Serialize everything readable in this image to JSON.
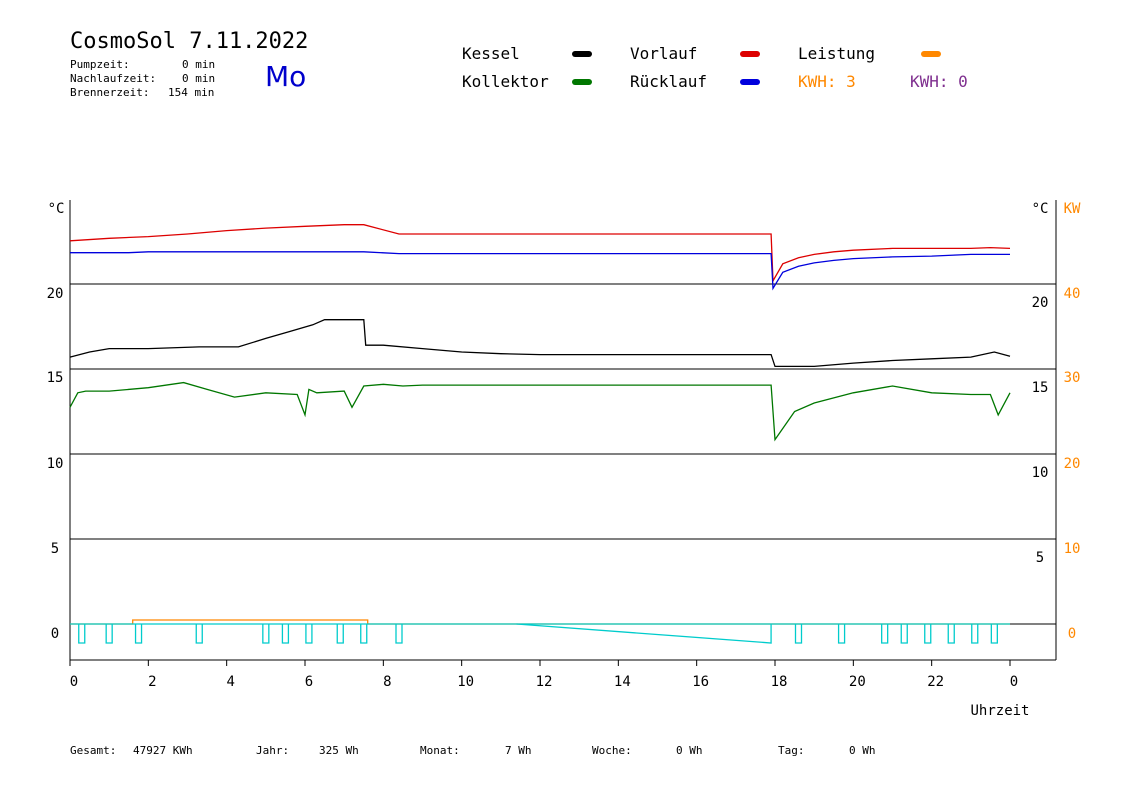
{
  "header": {
    "title": "CosmoSol 7.11.2022",
    "day": "Mo",
    "pumpzeit_label": "Pumpzeit:",
    "pumpzeit_value": "0 min",
    "nachlaufzeit_label": "Nachlaufzeit:",
    "nachlaufzeit_value": "0 min",
    "brennerzeit_label": "Brennerzeit:",
    "brennerzeit_value": "154 min"
  },
  "legend": {
    "kessel": "Kessel",
    "kollektor": "Kollektor",
    "vorlauf": "Vorlauf",
    "ruecklauf": "Rücklauf",
    "leistung": "Leistung",
    "kwh1": "KWH: 3",
    "kwh2": "KWH: 0"
  },
  "colors": {
    "kessel": "#000000",
    "kollektor": "#007700",
    "vorlauf": "#dd0000",
    "ruecklauf": "#0000dd",
    "leistung": "#ff8800",
    "kwh2": "#7f2f8f",
    "pump": "#00cccc"
  },
  "footer": {
    "gesamt_label": "Gesamt:",
    "gesamt_value": "47927 KWh",
    "jahr_label": "Jahr:",
    "jahr_value": "325 Wh",
    "monat_label": "Monat:",
    "monat_value": "7 Wh",
    "woche_label": "Woche:",
    "woche_value": "0 Wh",
    "tag_label": "Tag:",
    "tag_value": "0 Wh"
  },
  "chart_data": {
    "type": "line",
    "xlabel": "Uhrzeit",
    "x_ticks": [
      "0",
      "2",
      "4",
      "6",
      "8",
      "10",
      "12",
      "14",
      "16",
      "18",
      "20",
      "22",
      "0"
    ],
    "xlim": [
      0,
      24
    ],
    "left_axis": {
      "unit": "°C",
      "ticks": [
        "20",
        "15",
        "10",
        "5",
        "0"
      ]
    },
    "right_axis_temp": {
      "unit": "°C",
      "ticks": [
        "20",
        "15",
        "10",
        "5"
      ]
    },
    "right_axis_power": {
      "unit": "KW",
      "ticks": [
        "40",
        "30",
        "20",
        "10",
        "0"
      ]
    },
    "series": [
      {
        "name": "Vorlauf",
        "color": "#dd0000",
        "band": 0,
        "x": [
          0,
          1,
          2,
          3,
          4,
          5,
          6,
          7,
          7.5,
          8.4,
          10,
          12,
          14,
          16,
          17.9,
          17.95,
          18.2,
          18.6,
          19,
          19.5,
          20,
          21,
          22,
          23,
          23.5,
          24
        ],
        "y": [
          0.52,
          0.55,
          0.57,
          0.6,
          0.64,
          0.67,
          0.69,
          0.71,
          0.71,
          0.6,
          0.6,
          0.6,
          0.6,
          0.6,
          0.6,
          0.05,
          0.25,
          0.32,
          0.36,
          0.39,
          0.41,
          0.43,
          0.43,
          0.43,
          0.44,
          0.43
        ]
      },
      {
        "name": "Rücklauf",
        "color": "#0000dd",
        "band": 0,
        "x": [
          0,
          1.5,
          2,
          4,
          6,
          7.5,
          8.4,
          10,
          12,
          14,
          16,
          17.9,
          17.95,
          18.2,
          18.6,
          19,
          19.5,
          20,
          21,
          22,
          23,
          24
        ],
        "y": [
          0.38,
          0.38,
          0.39,
          0.39,
          0.39,
          0.39,
          0.37,
          0.37,
          0.37,
          0.37,
          0.37,
          0.37,
          -0.04,
          0.15,
          0.22,
          0.26,
          0.29,
          0.31,
          0.33,
          0.34,
          0.36,
          0.36
        ]
      },
      {
        "name": "Kessel",
        "color": "#000000",
        "band": 1,
        "x": [
          0,
          0.5,
          1,
          2,
          3.3,
          4.3,
          5,
          5.6,
          6.2,
          6.5,
          7,
          7.5,
          7.55,
          8,
          9,
          10,
          11,
          12,
          14,
          16,
          17.9,
          18,
          19,
          20,
          21,
          22,
          23,
          23.6,
          24
        ],
        "y": [
          0.14,
          0.2,
          0.24,
          0.24,
          0.26,
          0.26,
          0.36,
          0.44,
          0.52,
          0.58,
          0.58,
          0.58,
          0.28,
          0.28,
          0.24,
          0.2,
          0.18,
          0.17,
          0.17,
          0.17,
          0.17,
          0.03,
          0.03,
          0.07,
          0.1,
          0.12,
          0.14,
          0.2,
          0.15
        ]
      },
      {
        "name": "Kollektor",
        "color": "#007700",
        "band": 2,
        "x": [
          0,
          0.2,
          0.4,
          1,
          2,
          2.9,
          3.5,
          4.2,
          5,
          5.8,
          6,
          6.1,
          6.3,
          7,
          7.2,
          7.5,
          8,
          8.5,
          9,
          10,
          12,
          14,
          16,
          17.9,
          18,
          18.5,
          19,
          20,
          21,
          22,
          23,
          23.5,
          23.7,
          24
        ],
        "y": [
          0.55,
          0.72,
          0.74,
          0.74,
          0.78,
          0.84,
          0.76,
          0.67,
          0.72,
          0.7,
          0.46,
          0.76,
          0.72,
          0.74,
          0.55,
          0.8,
          0.82,
          0.8,
          0.81,
          0.81,
          0.81,
          0.81,
          0.81,
          0.81,
          0.17,
          0.5,
          0.6,
          0.72,
          0.8,
          0.72,
          0.7,
          0.7,
          0.46,
          0.72
        ]
      },
      {
        "name": "Leistung",
        "color": "#ff8800",
        "band": 5,
        "x": [
          0,
          1.6,
          1.6,
          7.6,
          7.6,
          24
        ],
        "y": [
          0,
          0,
          0.5,
          0.5,
          0,
          0
        ]
      }
    ],
    "pump_pulses": [
      0.3,
      1.0,
      1.75,
      3.3,
      5.0,
      5.5,
      6.1,
      6.9,
      7.5,
      8.4,
      18.6,
      19.7,
      20.8,
      21.3,
      21.9,
      22.5,
      23.1,
      23.6
    ],
    "pump_ramp": {
      "x0": 11.4,
      "x1": 17.9
    }
  }
}
